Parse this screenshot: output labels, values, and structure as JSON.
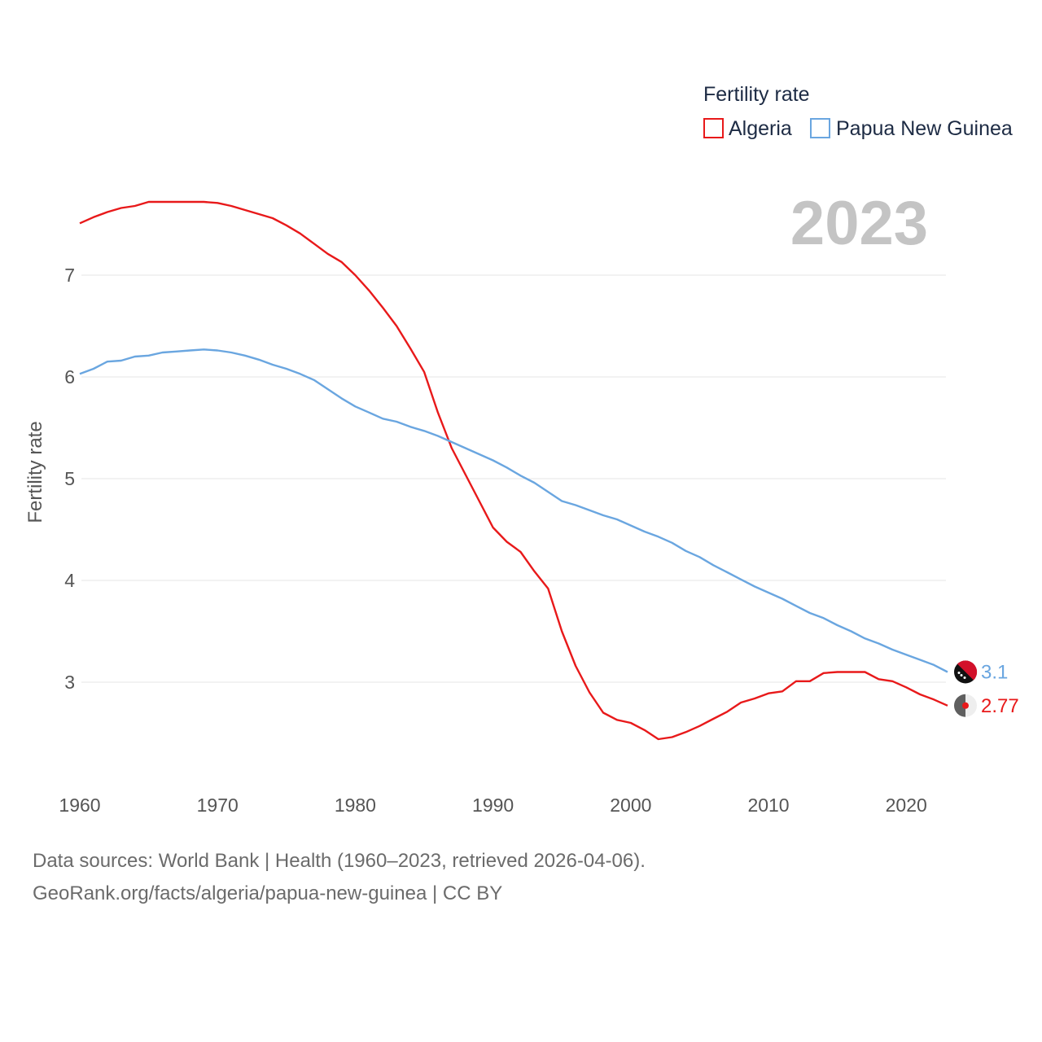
{
  "chart_data": {
    "type": "line",
    "title": "",
    "xlabel": "",
    "ylabel": "Fertility rate",
    "xlim": [
      1960,
      2023
    ],
    "ylim": [
      2.0,
      7.8
    ],
    "x_ticks": [
      1960,
      1970,
      1980,
      1990,
      2000,
      2010,
      2020
    ],
    "y_ticks": [
      3,
      4,
      5,
      6,
      7
    ],
    "legend_title": "Fertility rate",
    "legend_position": "top-right",
    "year_label": "2023",
    "x": [
      1960,
      1961,
      1962,
      1963,
      1964,
      1965,
      1966,
      1967,
      1968,
      1969,
      1970,
      1971,
      1972,
      1973,
      1974,
      1975,
      1976,
      1977,
      1978,
      1979,
      1980,
      1981,
      1982,
      1983,
      1984,
      1985,
      1986,
      1987,
      1988,
      1989,
      1990,
      1991,
      1992,
      1993,
      1994,
      1995,
      1996,
      1997,
      1998,
      1999,
      2000,
      2001,
      2002,
      2003,
      2004,
      2005,
      2006,
      2007,
      2008,
      2009,
      2010,
      2011,
      2012,
      2013,
      2014,
      2015,
      2016,
      2017,
      2018,
      2019,
      2020,
      2021,
      2022,
      2023
    ],
    "series": [
      {
        "name": "Algeria",
        "color": "#e8191a",
        "end_label": "2.77",
        "values": [
          7.51,
          7.57,
          7.62,
          7.66,
          7.68,
          7.72,
          7.72,
          7.72,
          7.72,
          7.72,
          7.71,
          7.68,
          7.64,
          7.6,
          7.56,
          7.49,
          7.41,
          7.31,
          7.21,
          7.13,
          7.0,
          6.85,
          6.68,
          6.5,
          6.28,
          6.05,
          5.65,
          5.3,
          5.04,
          4.78,
          4.52,
          4.38,
          4.28,
          4.09,
          3.92,
          3.5,
          3.16,
          2.9,
          2.7,
          2.63,
          2.6,
          2.53,
          2.44,
          2.46,
          2.51,
          2.57,
          2.64,
          2.71,
          2.8,
          2.84,
          2.89,
          2.91,
          3.01,
          3.01,
          3.09,
          3.1,
          3.1,
          3.1,
          3.03,
          3.01,
          2.95,
          2.88,
          2.83,
          2.77
        ]
      },
      {
        "name": "Papua New Guinea",
        "color": "#6aa6e0",
        "end_label": "3.1",
        "values": [
          6.03,
          6.08,
          6.15,
          6.16,
          6.2,
          6.21,
          6.24,
          6.25,
          6.26,
          6.27,
          6.26,
          6.24,
          6.21,
          6.17,
          6.12,
          6.08,
          6.03,
          5.97,
          5.88,
          5.79,
          5.71,
          5.65,
          5.59,
          5.56,
          5.51,
          5.47,
          5.42,
          5.36,
          5.3,
          5.24,
          5.18,
          5.11,
          5.03,
          4.96,
          4.87,
          4.78,
          4.74,
          4.69,
          4.64,
          4.6,
          4.54,
          4.48,
          4.43,
          4.37,
          4.29,
          4.23,
          4.15,
          4.08,
          4.01,
          3.94,
          3.88,
          3.82,
          3.75,
          3.68,
          3.63,
          3.56,
          3.5,
          3.43,
          3.38,
          3.32,
          3.27,
          3.22,
          3.17,
          3.1
        ]
      }
    ]
  },
  "source": {
    "line1": "Data sources: World Bank | Health (1960–2023, retrieved 2026-04-06).",
    "line2": "GeoRank.org/facts/algeria/papua-new-guinea | CC BY"
  }
}
